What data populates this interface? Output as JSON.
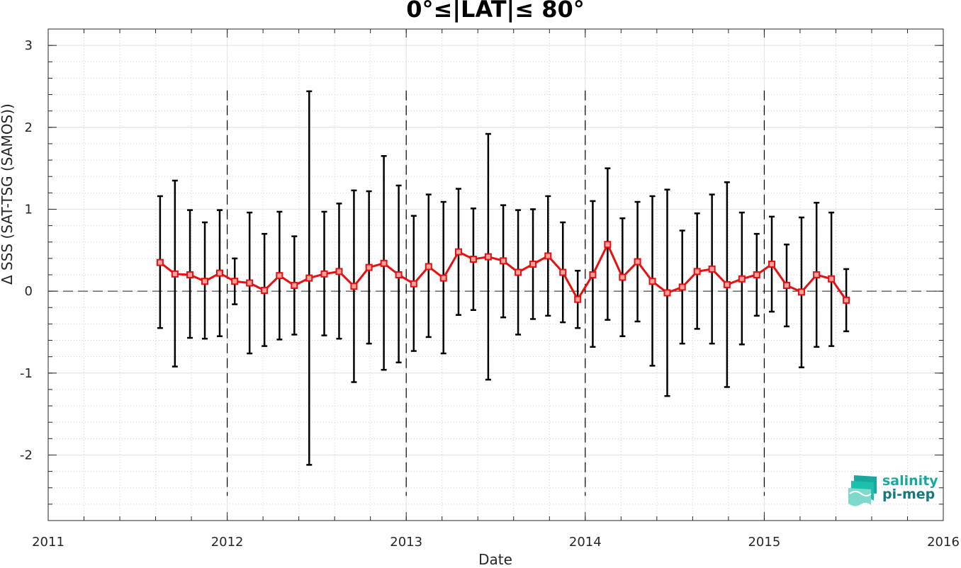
{
  "chart_data": {
    "type": "line",
    "title": "0°≤|LAT|≤ 80°",
    "xlabel": "Date",
    "ylabel": "Δ SSS (SAT-TSG (SAMOS))",
    "xlim": [
      2011,
      2016
    ],
    "ylim": [
      -2.8,
      3.2
    ],
    "x_ticks": [
      2011,
      2012,
      2013,
      2014,
      2015,
      2016
    ],
    "y_ticks": [
      -2,
      -1,
      0,
      1,
      2,
      3
    ],
    "y_tick_labels": [
      "-2",
      "-1",
      "0",
      "1",
      "2",
      "3"
    ],
    "grid": true,
    "year_separators": [
      2012,
      2013,
      2014,
      2015
    ],
    "series": [
      {
        "color": "#e61010",
        "marker": "square",
        "points": [
          {
            "x": 2011.625,
            "y": 0.35,
            "lo": -0.45,
            "hi": 1.16
          },
          {
            "x": 2011.708,
            "y": 0.21,
            "lo": -0.92,
            "hi": 1.35
          },
          {
            "x": 2011.792,
            "y": 0.2,
            "lo": -0.57,
            "hi": 0.99
          },
          {
            "x": 2011.875,
            "y": 0.12,
            "lo": -0.58,
            "hi": 0.84
          },
          {
            "x": 2011.958,
            "y": 0.22,
            "lo": -0.55,
            "hi": 0.99
          },
          {
            "x": 2012.042,
            "y": 0.12,
            "lo": -0.16,
            "hi": 0.4
          },
          {
            "x": 2012.125,
            "y": 0.1,
            "lo": -0.76,
            "hi": 0.96
          },
          {
            "x": 2012.208,
            "y": 0.01,
            "lo": -0.67,
            "hi": 0.7
          },
          {
            "x": 2012.292,
            "y": 0.19,
            "lo": -0.59,
            "hi": 0.97
          },
          {
            "x": 2012.375,
            "y": 0.07,
            "lo": -0.53,
            "hi": 0.67
          },
          {
            "x": 2012.458,
            "y": 0.16,
            "lo": -2.12,
            "hi": 2.44
          },
          {
            "x": 2012.542,
            "y": 0.21,
            "lo": -0.54,
            "hi": 0.97
          },
          {
            "x": 2012.625,
            "y": 0.24,
            "lo": -0.58,
            "hi": 1.07
          },
          {
            "x": 2012.708,
            "y": 0.06,
            "lo": -1.11,
            "hi": 1.23
          },
          {
            "x": 2012.792,
            "y": 0.29,
            "lo": -0.64,
            "hi": 1.22
          },
          {
            "x": 2012.875,
            "y": 0.34,
            "lo": -0.96,
            "hi": 1.65
          },
          {
            "x": 2012.958,
            "y": 0.2,
            "lo": -0.87,
            "hi": 1.29
          },
          {
            "x": 2013.042,
            "y": 0.09,
            "lo": -0.73,
            "hi": 0.92
          },
          {
            "x": 2013.125,
            "y": 0.3,
            "lo": -0.56,
            "hi": 1.18
          },
          {
            "x": 2013.208,
            "y": 0.16,
            "lo": -0.76,
            "hi": 1.09
          },
          {
            "x": 2013.292,
            "y": 0.48,
            "lo": -0.29,
            "hi": 1.25
          },
          {
            "x": 2013.375,
            "y": 0.39,
            "lo": -0.23,
            "hi": 1.01
          },
          {
            "x": 2013.458,
            "y": 0.42,
            "lo": -1.08,
            "hi": 1.92
          },
          {
            "x": 2013.542,
            "y": 0.37,
            "lo": -0.32,
            "hi": 1.05
          },
          {
            "x": 2013.625,
            "y": 0.23,
            "lo": -0.53,
            "hi": 0.99
          },
          {
            "x": 2013.708,
            "y": 0.33,
            "lo": -0.34,
            "hi": 1.0
          },
          {
            "x": 2013.792,
            "y": 0.43,
            "lo": -0.3,
            "hi": 1.16
          },
          {
            "x": 2013.875,
            "y": 0.23,
            "lo": -0.38,
            "hi": 0.84
          },
          {
            "x": 2013.958,
            "y": -0.1,
            "lo": -0.45,
            "hi": 0.25
          },
          {
            "x": 2014.042,
            "y": 0.2,
            "lo": -0.68,
            "hi": 1.1
          },
          {
            "x": 2014.125,
            "y": 0.57,
            "lo": -0.35,
            "hi": 1.5
          },
          {
            "x": 2014.208,
            "y": 0.17,
            "lo": -0.55,
            "hi": 0.89
          },
          {
            "x": 2014.292,
            "y": 0.36,
            "lo": -0.37,
            "hi": 1.09
          },
          {
            "x": 2014.375,
            "y": 0.12,
            "lo": -0.91,
            "hi": 1.16
          },
          {
            "x": 2014.458,
            "y": -0.02,
            "lo": -1.28,
            "hi": 1.24
          },
          {
            "x": 2014.542,
            "y": 0.05,
            "lo": -0.64,
            "hi": 0.74
          },
          {
            "x": 2014.625,
            "y": 0.24,
            "lo": -0.46,
            "hi": 0.95
          },
          {
            "x": 2014.708,
            "y": 0.27,
            "lo": -0.64,
            "hi": 1.18
          },
          {
            "x": 2014.792,
            "y": 0.08,
            "lo": -1.17,
            "hi": 1.33
          },
          {
            "x": 2014.875,
            "y": 0.15,
            "lo": -0.65,
            "hi": 0.96
          },
          {
            "x": 2014.958,
            "y": 0.2,
            "lo": -0.3,
            "hi": 0.7
          },
          {
            "x": 2015.042,
            "y": 0.33,
            "lo": -0.25,
            "hi": 0.91
          },
          {
            "x": 2015.125,
            "y": 0.07,
            "lo": -0.43,
            "hi": 0.57
          },
          {
            "x": 2015.208,
            "y": -0.01,
            "lo": -0.93,
            "hi": 0.9
          },
          {
            "x": 2015.292,
            "y": 0.2,
            "lo": -0.68,
            "hi": 1.08
          },
          {
            "x": 2015.375,
            "y": 0.15,
            "lo": -0.67,
            "hi": 0.96
          },
          {
            "x": 2015.458,
            "y": -0.11,
            "lo": -0.49,
            "hi": 0.27
          }
        ]
      }
    ]
  },
  "logo": {
    "line1": "salinity",
    "line2": "pi-mep",
    "icon": "salinity-waves-icon"
  }
}
